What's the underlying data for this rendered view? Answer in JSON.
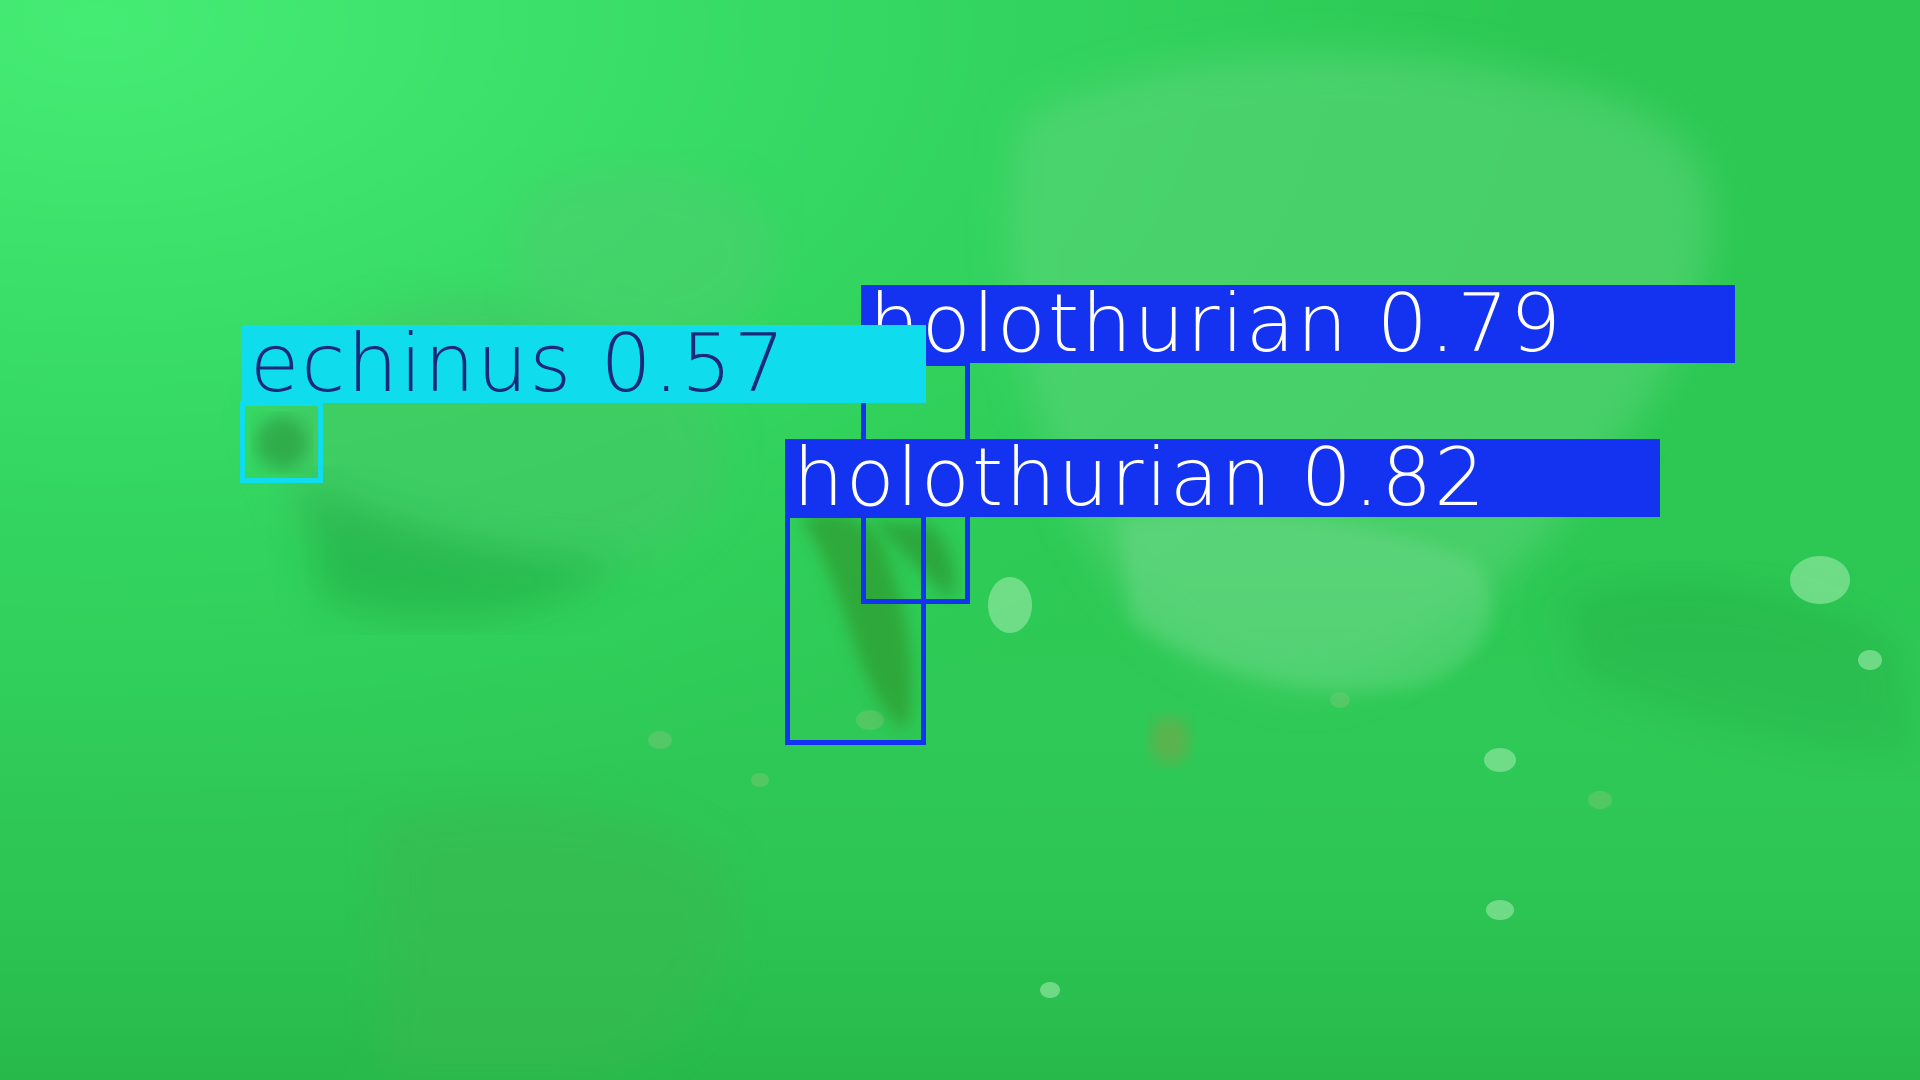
{
  "image": {
    "subject": "underwater seabed",
    "dominant_color": "#2fd35a"
  },
  "detections": [
    {
      "label": "holothurian 0.79",
      "class": "holothurian",
      "score": 0.79,
      "color": "#1433f0",
      "text_color": "#ffffff"
    },
    {
      "label": "holothurian 0.82",
      "class": "holothurian",
      "score": 0.82,
      "color": "#1433f0",
      "text_color": "#ffffff"
    },
    {
      "label": "echinus 0.57",
      "class": "echinus",
      "score": 0.57,
      "color": "#0fdcec",
      "text_color": "#1b2a78"
    }
  ]
}
